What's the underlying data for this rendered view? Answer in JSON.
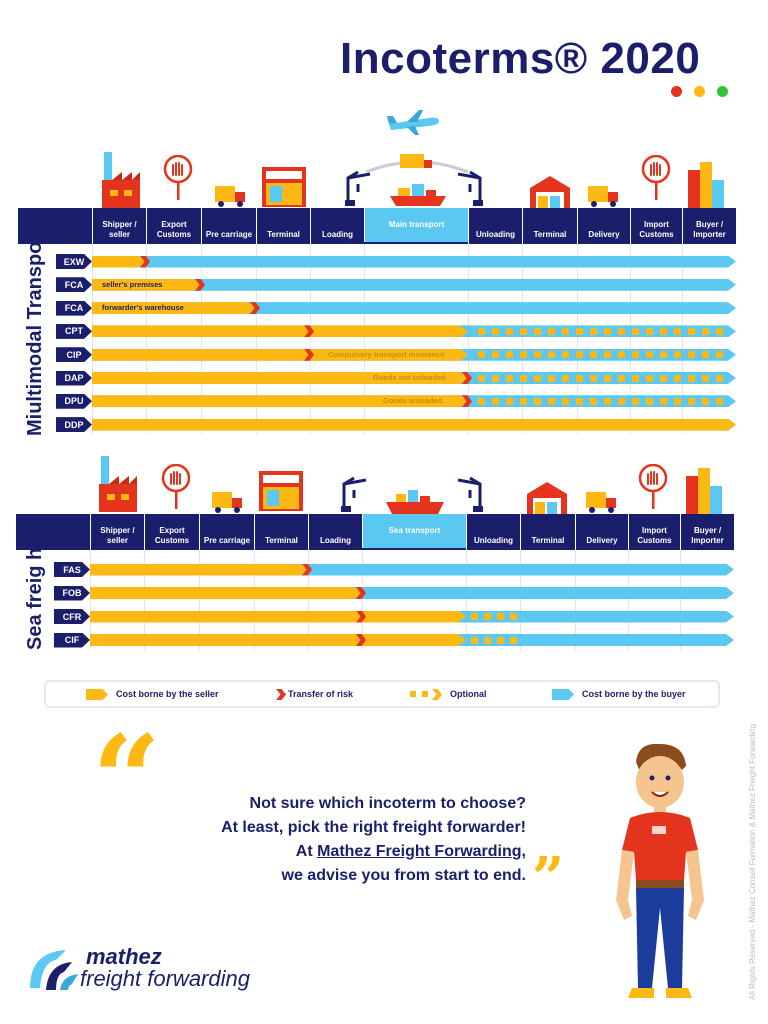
{
  "title": "Incoterms® 2020",
  "colors": {
    "navy": "#1b1f6b",
    "yellow": "#fdb913",
    "blue": "#5ac8f0",
    "red": "#e5341d",
    "green": "#33c339"
  },
  "multimodal": {
    "side_label": "Miultimodal Transport",
    "headers": [
      "Shipper / seller",
      "Export Customs",
      "Pre carriage",
      "Terminal",
      "Loading",
      "Main transport",
      "Unloading",
      "Terminal",
      "Delivery",
      "Import Customs",
      "Buyer / Importer"
    ],
    "rows": [
      {
        "code": "EXW",
        "label": ""
      },
      {
        "code": "FCA",
        "label": "seller's premises"
      },
      {
        "code": "FCA",
        "label": "forwarder's warehouse"
      },
      {
        "code": "CPT",
        "label": ""
      },
      {
        "code": "CIP",
        "label": "Compulsory transport insurance"
      },
      {
        "code": "DAP",
        "label": "Goods not unloaded"
      },
      {
        "code": "DPU",
        "label": "Goods unloaded"
      },
      {
        "code": "DDP",
        "label": ""
      }
    ]
  },
  "sea": {
    "side_label": "Sea freig h t",
    "headers": [
      "Shipper / seller",
      "Export Customs",
      "Pre carriage",
      "Terminal",
      "Loading",
      "Sea transport",
      "Unloading",
      "Terminal",
      "Delivery",
      "Import Customs",
      "Buyer / Importer"
    ],
    "rows": [
      {
        "code": "FAS"
      },
      {
        "code": "FOB"
      },
      {
        "code": "CFR"
      },
      {
        "code": "CIF"
      }
    ]
  },
  "legend": {
    "seller": "Cost borne by the seller",
    "risk": "Transfer of risk",
    "optional": "Optional",
    "buyer": "Cost borne by the buyer"
  },
  "quote": {
    "line1": "Not sure which incoterm to choose?",
    "line2": "At least, pick the right freight forwarder!",
    "line3_pre": "At ",
    "line3_link": "Mathez Freight Forwarding",
    "line3_post": ",",
    "line4": "we advise you from start to end."
  },
  "logo": {
    "line1": "mathez",
    "line2": "freight forwarding"
  },
  "footer": "All Rights Reserved - Mathez Conseil Formation & Mathez Freight Forwarding",
  "icons": [
    "airplane-icon",
    "factory-icon",
    "customs-hand-icon",
    "truck-icon",
    "terminal-building-icon",
    "crane-icon",
    "ship-icon",
    "warehouse-icon",
    "city-icon",
    "man-character-icon"
  ]
}
